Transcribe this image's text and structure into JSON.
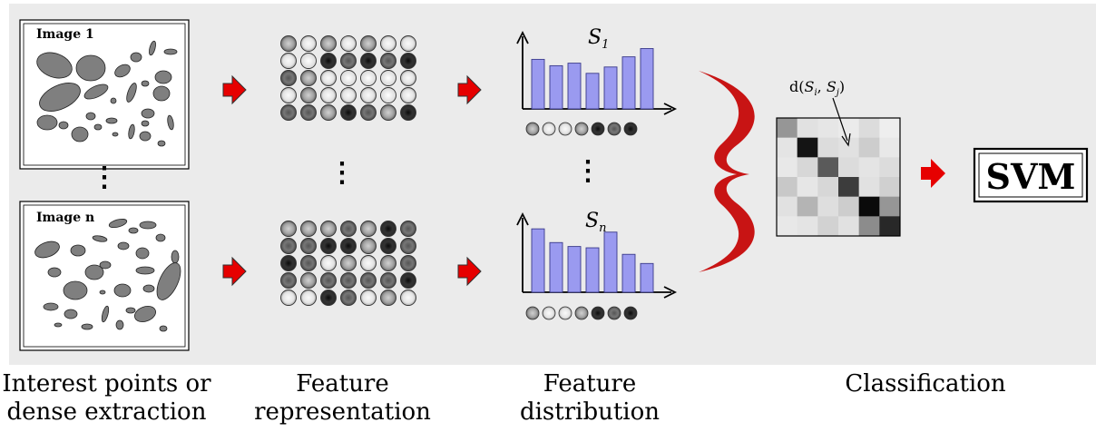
{
  "images": [
    {
      "label": "Image 1"
    },
    {
      "label": "Image n"
    }
  ],
  "histograms": [
    {
      "label": "S",
      "subscript": "1",
      "values": [
        0.78,
        0.68,
        0.72,
        0.56,
        0.66,
        0.82,
        0.95
      ]
    },
    {
      "label": "S",
      "subscript": "n",
      "values": [
        0.97,
        0.76,
        0.7,
        0.68,
        0.92,
        0.58,
        0.44
      ]
    }
  ],
  "distance_label": {
    "prefix": "d(",
    "a": "S",
    "a_sub": "i",
    "sep": ", ",
    "b": "S",
    "b_sub": "j",
    "suffix": ")"
  },
  "svm_label": "SVM",
  "ellipsis": "⋮",
  "captions": [
    {
      "text": "Interest points or\ndense extraction"
    },
    {
      "text": "Feature\nrepresentation"
    },
    {
      "text": "Feature\ndistribution"
    },
    {
      "text": "Classification"
    }
  ],
  "colors": {
    "panel": "#ebebeb",
    "arrow": "#e60000",
    "brace": "#c81414",
    "bar": "#9a9af0",
    "bar_stroke": "#3a3a8a",
    "blob": "#7f7f7f"
  },
  "icons": [
    "red-arrow-icon",
    "curly-brace-icon",
    "axis-arrow-icon"
  ]
}
